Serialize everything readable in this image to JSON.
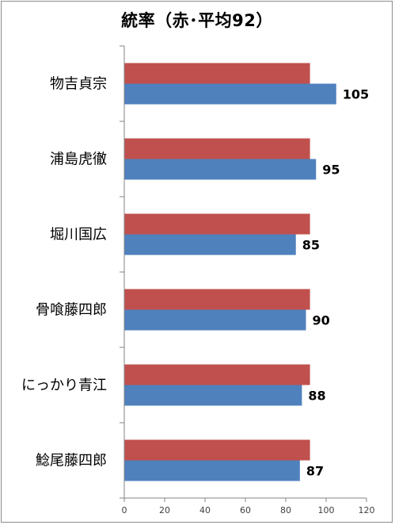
{
  "chart_data": {
    "type": "bar",
    "orientation": "horizontal",
    "title": "統率（赤･平均92）",
    "categories": [
      "物吉貞宗",
      "浦島虎徹",
      "堀川国広",
      "骨喰藤四郎",
      "にっかり青江",
      "鯰尾藤四郎"
    ],
    "series": [
      {
        "values": [
          92,
          92,
          92,
          92,
          92,
          92
        ],
        "color": "#c0504d",
        "data_labels": false
      },
      {
        "values": [
          105,
          95,
          85,
          90,
          88,
          87
        ],
        "color": "#4f81bd",
        "data_labels": true
      }
    ],
    "xlim": [
      0,
      120
    ],
    "xticks": [
      0,
      20,
      40,
      60,
      80,
      100,
      120
    ],
    "grid": false,
    "legend": "none"
  }
}
